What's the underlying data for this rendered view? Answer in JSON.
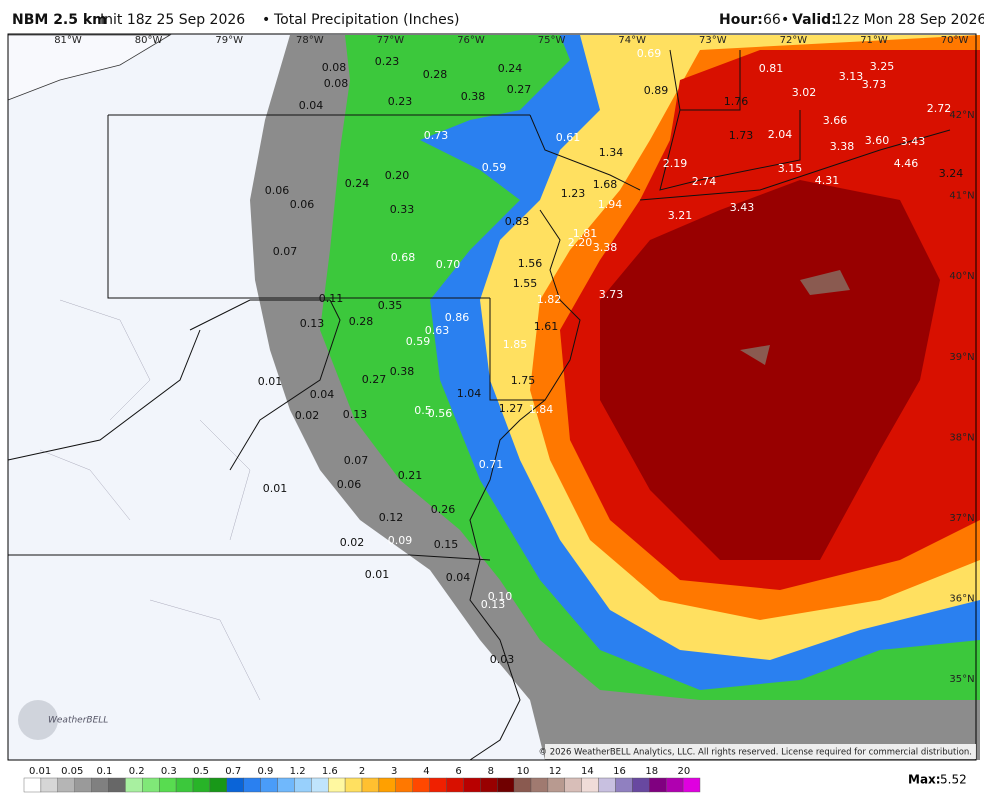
{
  "header": {
    "model": "NBM 2.5 km",
    "run": "Init 18z 25 Sep 2026",
    "sep1": "•",
    "product": "Total Precipitation (Inches)",
    "hour_label": "Hour:",
    "hour": "66",
    "sep2": "•",
    "valid_label": "Valid:",
    "valid": "12z Mon 28 Sep 2026"
  },
  "longitudes": [
    "81°W",
    "80°W",
    "79°W",
    "78°W",
    "77°W",
    "76°W",
    "75°W",
    "74°W",
    "73°W",
    "72°W",
    "71°W",
    "70°W"
  ],
  "latitudes": [
    "42°N",
    "41°N",
    "40°N",
    "39°N",
    "38°N",
    "37°N",
    "36°N",
    "35°N"
  ],
  "map_labels": [
    "0.08",
    "0.08",
    "0.04",
    "0.23",
    "0.28",
    "0.24",
    "0.38",
    "0.27",
    "0.23",
    "0.69",
    "0.89",
    "0.81",
    "3.13",
    "3.25",
    "3.73",
    "1.76",
    "3.02",
    "2.72",
    "0.73",
    "0.61",
    "1.34",
    "1.73",
    "2.04",
    "3.66",
    "3.38",
    "3.60",
    "3.43",
    "4.46",
    "3.24",
    "0.59",
    "0.20",
    "0.24",
    "0.06",
    "0.06",
    "0.33",
    "1.68",
    "2.19",
    "2.74",
    "3.15",
    "4.31",
    "1.23",
    "1.94",
    "3.21",
    "3.43",
    "0.83",
    "1.81",
    "2.20",
    "3.38",
    "0.07",
    "0.68",
    "0.70",
    "1.56",
    "1.55",
    "1.82",
    "3.73",
    "0.11",
    "0.35",
    "0.13",
    "0.28",
    "0.63",
    "0.86",
    "1.61",
    "0.59",
    "1.85",
    "0.38",
    "0.27",
    "0.01",
    "1.75",
    "0.04",
    "1.04",
    "0.02",
    "0.13",
    "0.5",
    "0.56",
    "1.27",
    "1.84",
    "0.07",
    "0.71",
    "0.21",
    "0.06",
    "0.01",
    "0.26",
    "0.12",
    "0.09",
    "0.15",
    "0.02",
    "0.01",
    "0.04",
    "0.10",
    "0.13",
    "0.03"
  ],
  "colorbar": {
    "labels": [
      "0.01",
      "0.05",
      "0.1",
      "0.2",
      "0.3",
      "0.5",
      "0.7",
      "0.9",
      "1.2",
      "1.6",
      "2",
      "3",
      "4",
      "6",
      "8",
      "10",
      "12",
      "14",
      "16",
      "18",
      "20"
    ],
    "colors": [
      "#ffffff",
      "#d6d6d6",
      "#b5b5b5",
      "#9a9a9a",
      "#808080",
      "#676767",
      "#a8f0a0",
      "#80e878",
      "#58dc50",
      "#3cc83c",
      "#28b428",
      "#189818",
      "#0a64d8",
      "#2a80f0",
      "#4a9cf8",
      "#70b8fc",
      "#98d0fc",
      "#c0e4fc",
      "#fff8a0",
      "#ffe060",
      "#ffc030",
      "#ffa000",
      "#ff7800",
      "#ff4800",
      "#f02000",
      "#d81000",
      "#b80000",
      "#980000",
      "#700000",
      "#8a5a50",
      "#a07a70",
      "#b89a90",
      "#d8beb8",
      "#f0dcd8",
      "#c8c0e0",
      "#9080c0",
      "#6848a0",
      "#800080",
      "#b000b0",
      "#e000e0"
    ]
  },
  "max_label": "Max:",
  "max_value": "5.52",
  "copyright": "© 2026 WeatherBELL Analytics, LLC. All rights reserved. License required for commercial distribution.",
  "logo": "WeatherBELL"
}
